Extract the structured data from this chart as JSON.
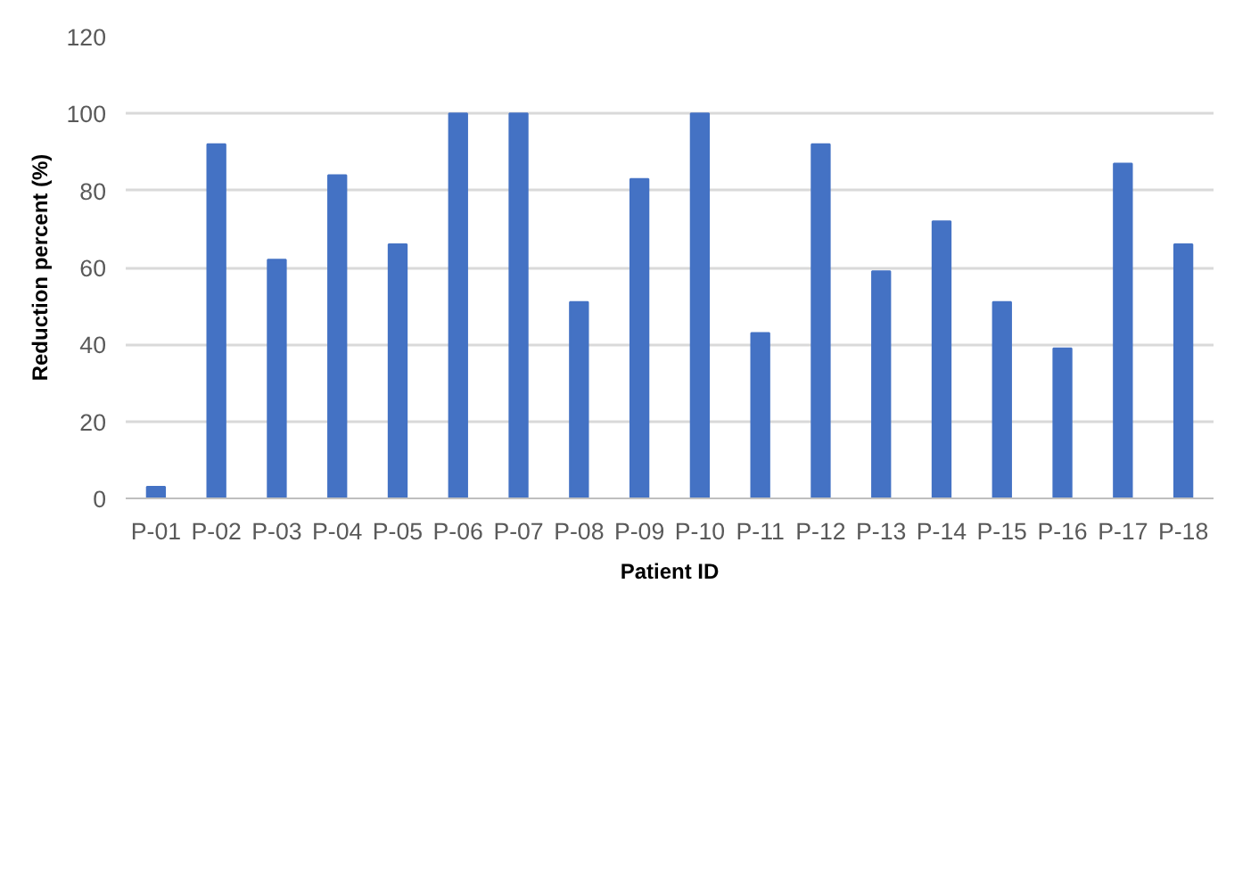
{
  "chart_data": {
    "type": "bar",
    "xlabel": "Patient ID",
    "ylabel": "Reduction percent (%)",
    "categories": [
      "P-01",
      "P-02",
      "P-03",
      "P-04",
      "P-05",
      "P-06",
      "P-07",
      "P-08",
      "P-09",
      "P-10",
      "P-11",
      "P-12",
      "P-13",
      "P-14",
      "P-15",
      "P-16",
      "P-17",
      "P-18"
    ],
    "values": [
      3,
      92,
      62,
      84,
      66,
      100,
      100,
      51,
      83,
      100,
      43,
      92,
      59,
      72,
      51,
      39,
      87,
      66
    ],
    "color": "#4472c4",
    "ylim": [
      0,
      120
    ],
    "yticks": [
      0,
      20,
      40,
      60,
      80,
      100,
      120
    ],
    "grid": "y"
  }
}
